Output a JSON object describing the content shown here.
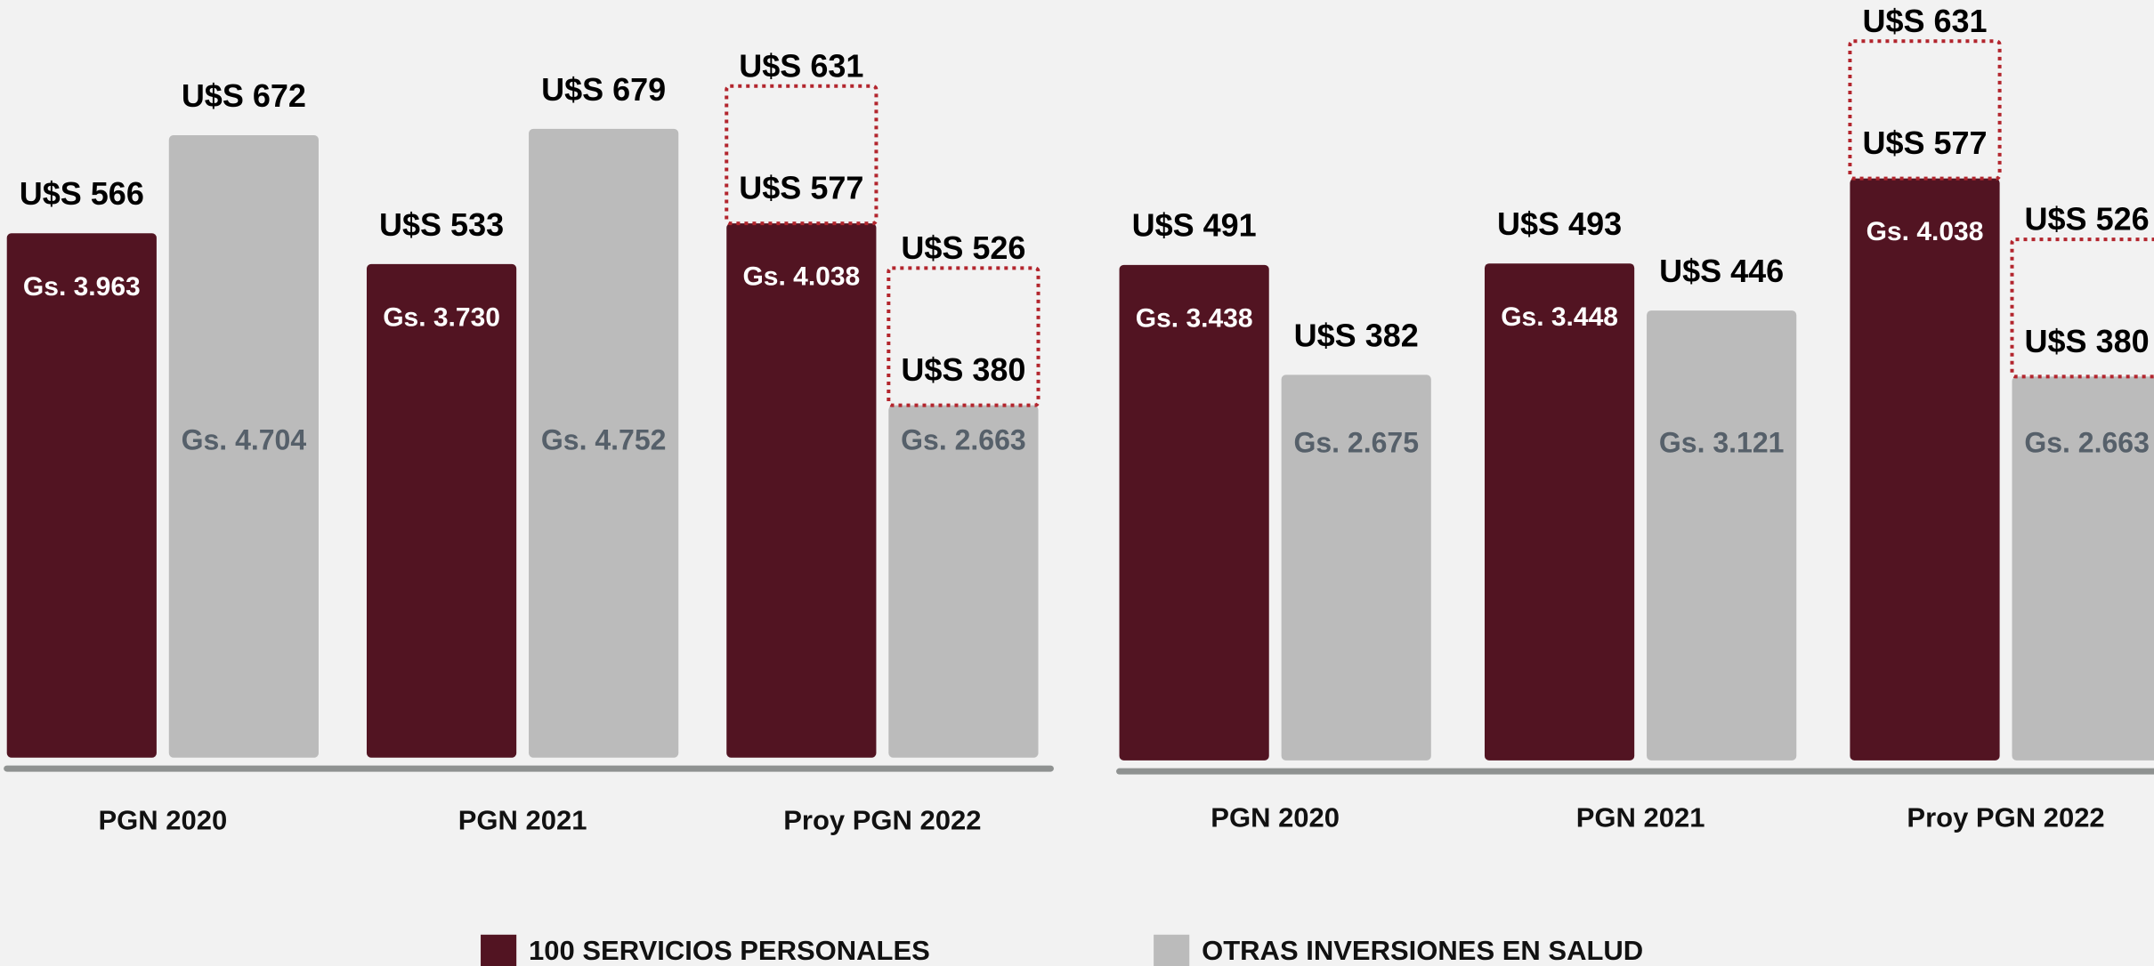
{
  "chart_data": [
    {
      "type": "bar",
      "categories": [
        "PGN 2020",
        "PGN 2021",
        "Proy PGN 2022"
      ],
      "ylim": [
        0,
        5000
      ],
      "series": [
        {
          "name": "100 SERVICIOS PERSONALES",
          "color": "#521422",
          "values": [
            3963,
            3730,
            4038
          ],
          "value_labels": [
            "Gs. 3.963",
            "Gs. 3.730",
            "Gs. 4.038"
          ],
          "usd_labels": [
            "U$S 566",
            "U$S 533",
            "U$S 577"
          ],
          "usd_alt_labels": [
            null,
            null,
            "U$S 631"
          ]
        },
        {
          "name": "OTRAS INVERSIONES EN SALUD",
          "color": "#bbbbbb",
          "values": [
            4704,
            4752,
            2663
          ],
          "value_labels": [
            "Gs. 4.704",
            "Gs. 4.752",
            "Gs. 2.663"
          ],
          "usd_labels": [
            "U$S 672",
            "U$S 679",
            "U$S 380"
          ],
          "usd_alt_labels": [
            null,
            null,
            "U$S 526"
          ]
        }
      ]
    },
    {
      "type": "bar",
      "categories": [
        "PGN 2020",
        "PGN 2021",
        "Proy PGN 2022"
      ],
      "ylim": [
        0,
        5000
      ],
      "series": [
        {
          "color": "#521422",
          "values": [
            3438,
            3448,
            4038
          ],
          "value_labels": [
            "Gs. 3.438",
            "Gs. 3.448",
            "Gs. 4.038"
          ],
          "usd_labels": [
            "U$S 491",
            "U$S 493",
            "U$S 577"
          ],
          "usd_alt_labels": [
            null,
            null,
            "U$S 631"
          ]
        },
        {
          "color": "#bbbbbb",
          "values": [
            2675,
            3121,
            2663
          ],
          "value_labels": [
            "Gs. 2.675",
            "Gs. 3.121",
            "Gs. 2.663"
          ],
          "usd_labels": [
            "U$S 382",
            "U$S 446",
            "U$S 380"
          ],
          "usd_alt_labels": [
            null,
            null,
            "U$S 526"
          ]
        }
      ]
    }
  ]
}
